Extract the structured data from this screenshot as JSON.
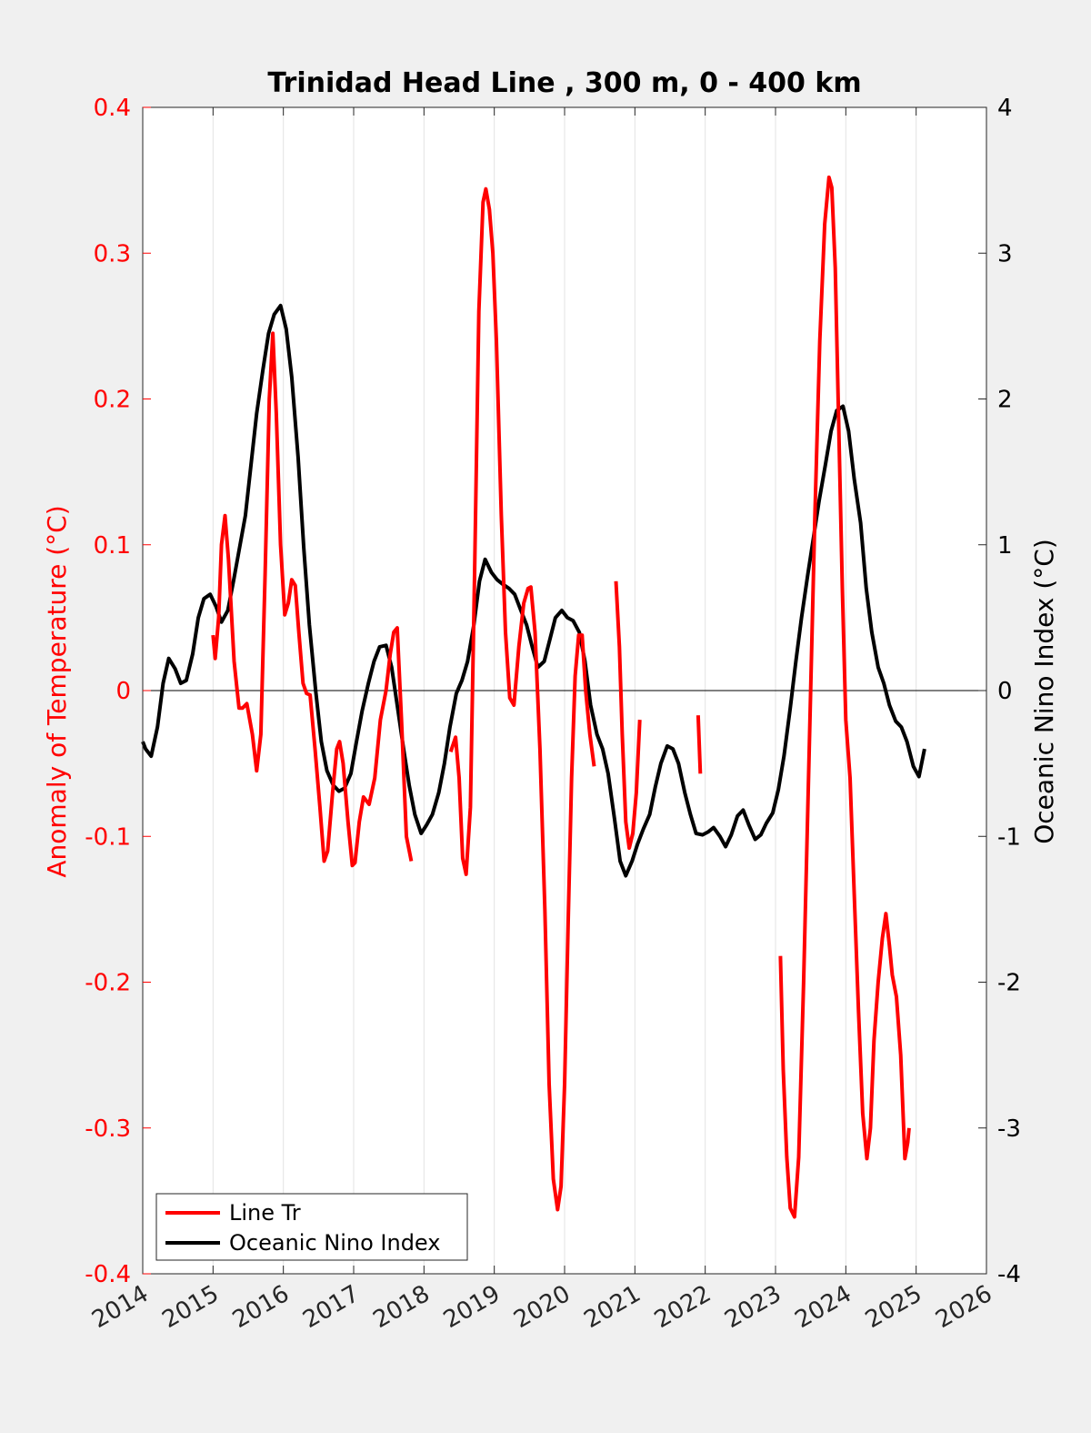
{
  "chart_data": {
    "type": "line",
    "title": "Trinidad Head Line , 300 m, 0 - 400 km",
    "xlabel": "",
    "ylabel_left": "Anomaly of Temperature (°C)",
    "ylabel_right": "Oceanic Nino Index (°C)",
    "xlim": [
      2014,
      2026
    ],
    "ylim_left": [
      -0.4,
      0.4
    ],
    "ylim_right": [
      -4,
      4
    ],
    "x_ticks": [
      "2014",
      "2015",
      "2016",
      "2017",
      "2018",
      "2019",
      "2020",
      "2021",
      "2022",
      "2023",
      "2024",
      "2025",
      "2026"
    ],
    "y_left_ticks": [
      "-0.4",
      "-0.3",
      "-0.2",
      "-0.1",
      "0",
      "0.1",
      "0.2",
      "0.3",
      "0.4"
    ],
    "y_right_ticks": [
      "-4",
      "-3",
      "-2",
      "-1",
      "0",
      "1",
      "2",
      "3",
      "4"
    ],
    "grid": "vertical",
    "zero_line": true,
    "legend_position": "bottom-left",
    "colors": {
      "line_tr": "#ff0000",
      "oni": "#000000",
      "left_axis": "#ff0000",
      "right_axis": "#000000"
    },
    "series": [
      {
        "name": "Line Tr",
        "axis": "left",
        "color": "#ff0000",
        "segments": [
          [
            [
              2015.0,
              0.038
            ],
            [
              2015.03,
              0.022
            ],
            [
              2015.08,
              0.05
            ],
            [
              2015.12,
              0.1
            ],
            [
              2015.17,
              0.12
            ],
            [
              2015.22,
              0.09
            ],
            [
              2015.3,
              0.02
            ],
            [
              2015.37,
              -0.012
            ],
            [
              2015.42,
              -0.012
            ],
            [
              2015.48,
              -0.009
            ],
            [
              2015.56,
              -0.03
            ],
            [
              2015.62,
              -0.055
            ],
            [
              2015.68,
              -0.03
            ],
            [
              2015.74,
              0.08
            ],
            [
              2015.8,
              0.2
            ],
            [
              2015.85,
              0.245
            ],
            [
              2015.9,
              0.19
            ],
            [
              2015.96,
              0.1
            ],
            [
              2016.02,
              0.052
            ],
            [
              2016.07,
              0.06
            ],
            [
              2016.12,
              0.076
            ],
            [
              2016.17,
              0.072
            ],
            [
              2016.22,
              0.04
            ],
            [
              2016.28,
              0.005
            ],
            [
              2016.33,
              -0.002
            ],
            [
              2016.38,
              -0.003
            ],
            [
              2016.45,
              -0.04
            ],
            [
              2016.52,
              -0.08
            ],
            [
              2016.58,
              -0.117
            ],
            [
              2016.63,
              -0.11
            ],
            [
              2016.7,
              -0.07
            ],
            [
              2016.76,
              -0.04
            ],
            [
              2016.8,
              -0.035
            ],
            [
              2016.85,
              -0.05
            ],
            [
              2016.92,
              -0.09
            ],
            [
              2016.98,
              -0.12
            ],
            [
              2017.02,
              -0.118
            ],
            [
              2017.08,
              -0.09
            ],
            [
              2017.14,
              -0.073
            ],
            [
              2017.22,
              -0.078
            ],
            [
              2017.3,
              -0.06
            ],
            [
              2017.38,
              -0.02
            ],
            [
              2017.46,
              0.0
            ],
            [
              2017.52,
              0.025
            ],
            [
              2017.57,
              0.04
            ],
            [
              2017.62,
              0.043
            ],
            [
              2017.68,
              -0.02
            ],
            [
              2017.75,
              -0.1
            ],
            [
              2017.82,
              -0.117
            ]
          ],
          [
            [
              2018.38,
              -0.042
            ],
            [
              2018.45,
              -0.032
            ],
            [
              2018.5,
              -0.06
            ],
            [
              2018.55,
              -0.115
            ],
            [
              2018.6,
              -0.126
            ],
            [
              2018.66,
              -0.08
            ],
            [
              2018.72,
              0.08
            ],
            [
              2018.78,
              0.26
            ],
            [
              2018.84,
              0.335
            ],
            [
              2018.88,
              0.344
            ],
            [
              2018.93,
              0.33
            ],
            [
              2018.98,
              0.3
            ],
            [
              2019.03,
              0.24
            ],
            [
              2019.1,
              0.12
            ],
            [
              2019.16,
              0.04
            ],
            [
              2019.22,
              -0.005
            ],
            [
              2019.28,
              -0.01
            ],
            [
              2019.35,
              0.03
            ],
            [
              2019.42,
              0.06
            ],
            [
              2019.48,
              0.07
            ],
            [
              2019.52,
              0.071
            ],
            [
              2019.58,
              0.04
            ],
            [
              2019.65,
              -0.04
            ],
            [
              2019.72,
              -0.15
            ],
            [
              2019.78,
              -0.27
            ],
            [
              2019.84,
              -0.335
            ],
            [
              2019.9,
              -0.356
            ],
            [
              2019.95,
              -0.34
            ],
            [
              2020.0,
              -0.27
            ],
            [
              2020.05,
              -0.16
            ],
            [
              2020.1,
              -0.06
            ],
            [
              2020.15,
              0.01
            ],
            [
              2020.2,
              0.038
            ],
            [
              2020.25,
              0.038
            ],
            [
              2020.3,
              0.0
            ],
            [
              2020.36,
              -0.03
            ],
            [
              2020.42,
              -0.052
            ]
          ],
          [
            [
              2020.73,
              0.075
            ],
            [
              2020.78,
              0.03
            ],
            [
              2020.82,
              -0.03
            ],
            [
              2020.87,
              -0.09
            ],
            [
              2020.92,
              -0.108
            ],
            [
              2020.97,
              -0.098
            ],
            [
              2021.02,
              -0.07
            ],
            [
              2021.07,
              -0.02
            ]
          ],
          [
            [
              2021.9,
              -0.017
            ],
            [
              2021.93,
              -0.057
            ]
          ],
          [
            [
              2023.07,
              -0.182
            ],
            [
              2023.11,
              -0.26
            ],
            [
              2023.16,
              -0.32
            ],
            [
              2023.21,
              -0.355
            ],
            [
              2023.27,
              -0.361
            ],
            [
              2023.33,
              -0.32
            ],
            [
              2023.4,
              -0.2
            ],
            [
              2023.48,
              -0.04
            ],
            [
              2023.56,
              0.12
            ],
            [
              2023.63,
              0.24
            ],
            [
              2023.7,
              0.32
            ],
            [
              2023.76,
              0.352
            ],
            [
              2023.8,
              0.345
            ],
            [
              2023.85,
              0.29
            ],
            [
              2023.9,
              0.18
            ],
            [
              2023.95,
              0.07
            ],
            [
              2024.0,
              -0.02
            ],
            [
              2024.06,
              -0.06
            ],
            [
              2024.12,
              -0.14
            ],
            [
              2024.18,
              -0.22
            ],
            [
              2024.24,
              -0.29
            ],
            [
              2024.3,
              -0.321
            ],
            [
              2024.35,
              -0.3
            ],
            [
              2024.4,
              -0.24
            ],
            [
              2024.46,
              -0.2
            ],
            [
              2024.52,
              -0.17
            ],
            [
              2024.57,
              -0.153
            ],
            [
              2024.62,
              -0.175
            ],
            [
              2024.66,
              -0.195
            ],
            [
              2024.72,
              -0.21
            ],
            [
              2024.78,
              -0.25
            ],
            [
              2024.84,
              -0.321
            ],
            [
              2024.88,
              -0.31
            ],
            [
              2024.9,
              -0.3
            ]
          ]
        ]
      },
      {
        "name": "Oceanic Nino Index",
        "axis": "right",
        "color": "#000000",
        "points": [
          [
            2014.0,
            -0.35
          ],
          [
            2014.04,
            -0.4
          ],
          [
            2014.12,
            -0.45
          ],
          [
            2014.21,
            -0.25
          ],
          [
            2014.29,
            0.05
          ],
          [
            2014.37,
            0.22
          ],
          [
            2014.46,
            0.15
          ],
          [
            2014.54,
            0.05
          ],
          [
            2014.62,
            0.07
          ],
          [
            2014.71,
            0.25
          ],
          [
            2014.79,
            0.5
          ],
          [
            2014.87,
            0.63
          ],
          [
            2014.96,
            0.66
          ],
          [
            2015.04,
            0.58
          ],
          [
            2015.12,
            0.47
          ],
          [
            2015.21,
            0.55
          ],
          [
            2015.29,
            0.75
          ],
          [
            2015.37,
            0.96
          ],
          [
            2015.46,
            1.2
          ],
          [
            2015.54,
            1.55
          ],
          [
            2015.62,
            1.9
          ],
          [
            2015.71,
            2.2
          ],
          [
            2015.79,
            2.45
          ],
          [
            2015.87,
            2.58
          ],
          [
            2015.96,
            2.64
          ],
          [
            2016.04,
            2.48
          ],
          [
            2016.12,
            2.15
          ],
          [
            2016.21,
            1.6
          ],
          [
            2016.29,
            0.98
          ],
          [
            2016.37,
            0.45
          ],
          [
            2016.46,
            0.0
          ],
          [
            2016.54,
            -0.35
          ],
          [
            2016.62,
            -0.55
          ],
          [
            2016.71,
            -0.65
          ],
          [
            2016.79,
            -0.69
          ],
          [
            2016.87,
            -0.67
          ],
          [
            2016.96,
            -0.57
          ],
          [
            2017.04,
            -0.35
          ],
          [
            2017.12,
            -0.14
          ],
          [
            2017.21,
            0.05
          ],
          [
            2017.29,
            0.2
          ],
          [
            2017.37,
            0.3
          ],
          [
            2017.46,
            0.31
          ],
          [
            2017.54,
            0.16
          ],
          [
            2017.62,
            -0.1
          ],
          [
            2017.71,
            -0.4
          ],
          [
            2017.79,
            -0.65
          ],
          [
            2017.87,
            -0.85
          ],
          [
            2017.96,
            -0.98
          ],
          [
            2018.04,
            -0.92
          ],
          [
            2018.12,
            -0.85
          ],
          [
            2018.21,
            -0.7
          ],
          [
            2018.29,
            -0.5
          ],
          [
            2018.37,
            -0.25
          ],
          [
            2018.46,
            -0.02
          ],
          [
            2018.54,
            0.07
          ],
          [
            2018.62,
            0.2
          ],
          [
            2018.71,
            0.45
          ],
          [
            2018.79,
            0.75
          ],
          [
            2018.87,
            0.9
          ],
          [
            2018.96,
            0.81
          ],
          [
            2019.04,
            0.76
          ],
          [
            2019.12,
            0.73
          ],
          [
            2019.21,
            0.7
          ],
          [
            2019.29,
            0.66
          ],
          [
            2019.37,
            0.56
          ],
          [
            2019.46,
            0.45
          ],
          [
            2019.54,
            0.3
          ],
          [
            2019.62,
            0.16
          ],
          [
            2019.71,
            0.2
          ],
          [
            2019.79,
            0.35
          ],
          [
            2019.87,
            0.5
          ],
          [
            2019.96,
            0.55
          ],
          [
            2020.04,
            0.5
          ],
          [
            2020.12,
            0.48
          ],
          [
            2020.21,
            0.4
          ],
          [
            2020.29,
            0.2
          ],
          [
            2020.37,
            -0.1
          ],
          [
            2020.46,
            -0.3
          ],
          [
            2020.54,
            -0.4
          ],
          [
            2020.62,
            -0.57
          ],
          [
            2020.71,
            -0.88
          ],
          [
            2020.79,
            -1.17
          ],
          [
            2020.87,
            -1.27
          ],
          [
            2020.96,
            -1.17
          ],
          [
            2021.04,
            -1.05
          ],
          [
            2021.12,
            -0.95
          ],
          [
            2021.21,
            -0.85
          ],
          [
            2021.29,
            -0.66
          ],
          [
            2021.37,
            -0.5
          ],
          [
            2021.46,
            -0.38
          ],
          [
            2021.54,
            -0.4
          ],
          [
            2021.62,
            -0.5
          ],
          [
            2021.71,
            -0.7
          ],
          [
            2021.79,
            -0.85
          ],
          [
            2021.87,
            -0.98
          ],
          [
            2021.96,
            -0.99
          ],
          [
            2022.04,
            -0.97
          ],
          [
            2022.12,
            -0.94
          ],
          [
            2022.21,
            -1.0
          ],
          [
            2022.29,
            -1.07
          ],
          [
            2022.37,
            -0.99
          ],
          [
            2022.46,
            -0.86
          ],
          [
            2022.54,
            -0.82
          ],
          [
            2022.62,
            -0.92
          ],
          [
            2022.71,
            -1.02
          ],
          [
            2022.79,
            -0.99
          ],
          [
            2022.87,
            -0.91
          ],
          [
            2022.96,
            -0.84
          ],
          [
            2023.04,
            -0.68
          ],
          [
            2023.12,
            -0.45
          ],
          [
            2023.21,
            -0.12
          ],
          [
            2023.29,
            0.2
          ],
          [
            2023.37,
            0.5
          ],
          [
            2023.46,
            0.8
          ],
          [
            2023.54,
            1.05
          ],
          [
            2023.62,
            1.3
          ],
          [
            2023.71,
            1.55
          ],
          [
            2023.79,
            1.78
          ],
          [
            2023.87,
            1.92
          ],
          [
            2023.96,
            1.95
          ],
          [
            2024.04,
            1.78
          ],
          [
            2024.12,
            1.45
          ],
          [
            2024.21,
            1.15
          ],
          [
            2024.29,
            0.7
          ],
          [
            2024.37,
            0.4
          ],
          [
            2024.46,
            0.16
          ],
          [
            2024.54,
            0.05
          ],
          [
            2024.62,
            -0.1
          ],
          [
            2024.71,
            -0.21
          ],
          [
            2024.79,
            -0.25
          ],
          [
            2024.87,
            -0.35
          ],
          [
            2024.96,
            -0.52
          ],
          [
            2025.04,
            -0.59
          ],
          [
            2025.12,
            -0.4
          ]
        ]
      }
    ]
  }
}
